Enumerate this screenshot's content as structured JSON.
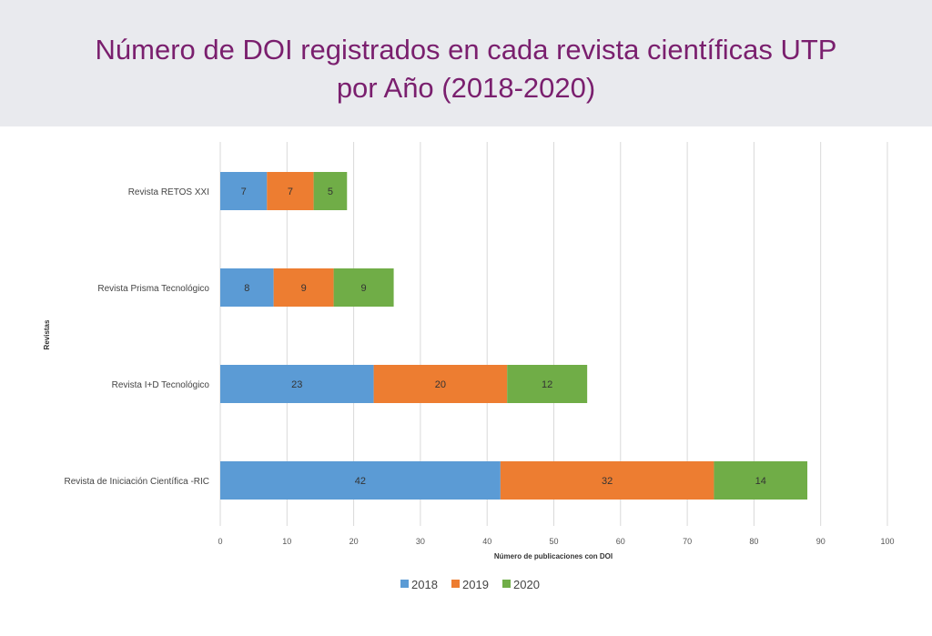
{
  "chart_data": {
    "type": "bar",
    "orientation": "horizontal",
    "stacked": true,
    "title": "Número de DOI registrados en cada revista científicas UTP por Año (2018-2020)",
    "xlabel": "Número de publicaciones  con DOI",
    "ylabel": "Revistas",
    "xlim": [
      0,
      100
    ],
    "xticks": [
      0,
      10,
      20,
      30,
      40,
      50,
      60,
      70,
      80,
      90,
      100
    ],
    "grid": true,
    "legend_position": "bottom",
    "categories": [
      "Revista RETOS XXI",
      "Revista Prisma Tecnológico",
      "Revista I+D Tecnológico",
      "Revista de Iniciación Científica -RIC"
    ],
    "series": [
      {
        "name": "2018",
        "color": "#5b9bd5",
        "values": [
          7,
          8,
          23,
          42
        ]
      },
      {
        "name": "2019",
        "color": "#ed7d31",
        "values": [
          7,
          9,
          20,
          32
        ]
      },
      {
        "name": "2020",
        "color": "#70ad47",
        "values": [
          5,
          9,
          12,
          14
        ]
      }
    ]
  },
  "header": {
    "title_line1": "Número de DOI registrados en cada revista científicas UTP",
    "title_line2": "por Año (2018-2020)"
  }
}
